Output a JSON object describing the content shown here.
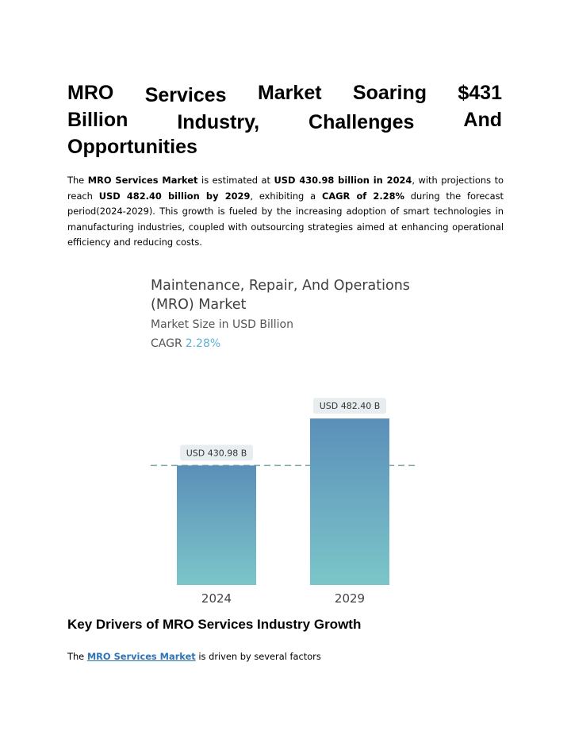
{
  "title": {
    "line1": [
      "MRO",
      "Services",
      "Market",
      "Soaring",
      "$431"
    ],
    "line2": [
      "Billion",
      "Industry,",
      "Challenges",
      "And"
    ],
    "line3": "Opportunities"
  },
  "intro": {
    "t1": "The ",
    "b1": "MRO Services Market",
    "t2": " is estimated at ",
    "b2": "USD 430.98 billion in 2024",
    "t3": ", with projections to reach ",
    "b3": "USD 482.40 billion by 2029",
    "t4": ", exhibiting a ",
    "b4": "CAGR of 2.28%",
    "t5": " during the forecast period(2024-2029). This growth is fueled by the increasing adoption of smart technologies in manufacturing industries, coupled with outsourcing strategies aimed at enhancing operational efficiency and reducing costs."
  },
  "figure": {
    "title": "Maintenance, Repair, And Operations (MRO) Market",
    "subtitle": "Market Size in USD Billion",
    "cagr_label": "CAGR",
    "cagr_value": "2.28%"
  },
  "chart_data": {
    "type": "bar",
    "categories": [
      "2024",
      "2029"
    ],
    "values": [
      430.98,
      482.4
    ],
    "data_labels": [
      "USD 430.98 B",
      "USD 482.40 B"
    ],
    "title": "Maintenance, Repair, And Operations (MRO) Market",
    "subtitle": "Market Size in USD Billion",
    "ylim": [
      0,
      500
    ],
    "grid": false,
    "reference_line": 430.98,
    "colors": {
      "bar_top": "#5b8fb9",
      "bar_bottom": "#7cc6c9",
      "label_bg": "#e8eef0",
      "line": "#7fa8a8"
    }
  },
  "section2": {
    "heading": "Key Drivers of MRO Services Industry Growth",
    "t1": "The ",
    "link": "MRO Services Market",
    "t2": " is driven by several factors"
  }
}
